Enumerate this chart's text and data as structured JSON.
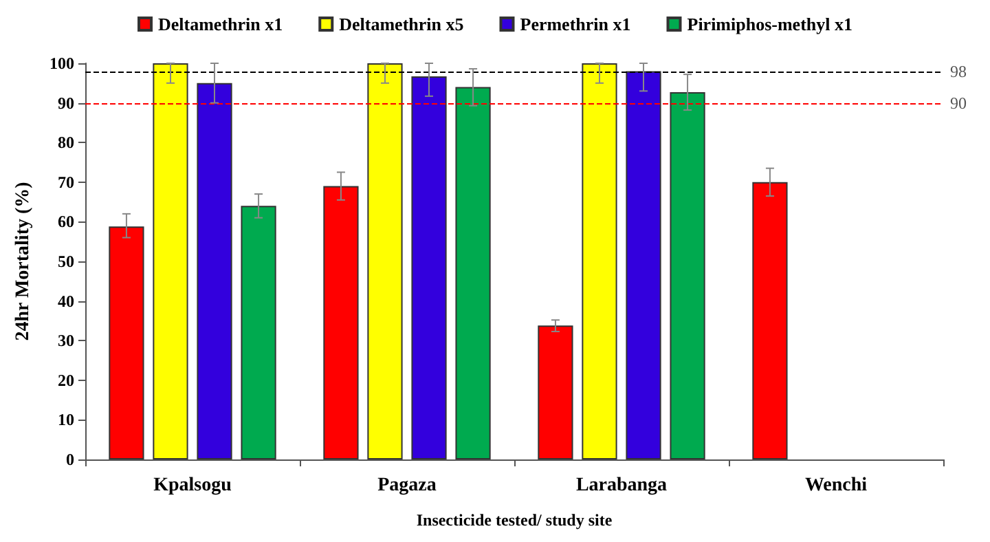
{
  "chart_data": {
    "type": "bar",
    "xlabel": "Insecticide tested/ study site",
    "ylabel": "24hr Mortality (%)",
    "categories": [
      "Kpalsogu",
      "Pagaza",
      "Larabanga",
      "Wenchi"
    ],
    "series": [
      {
        "name": "Deltamethrin x1",
        "color": "#ff0000",
        "values": [
          58.8,
          69,
          33.8,
          70
        ],
        "errors": [
          [
            56,
            62
          ],
          [
            65.5,
            72.5
          ],
          [
            32.3,
            35.2
          ],
          [
            66.5,
            73.5
          ]
        ]
      },
      {
        "name": "Deltamethrin x5",
        "color": "#ffff00",
        "values": [
          100,
          100,
          100,
          null
        ],
        "errors": [
          [
            95,
            100
          ],
          [
            95,
            100
          ],
          [
            95,
            100
          ],
          null
        ]
      },
      {
        "name": "Permethrin x1",
        "color": "#3300dd",
        "values": [
          95,
          96.7,
          98,
          null
        ],
        "errors": [
          [
            90,
            100
          ],
          [
            91.7,
            100
          ],
          [
            93,
            100
          ],
          null
        ]
      },
      {
        "name": "Pirimiphos-methyl x1",
        "color": "#00aa4f",
        "values": [
          64,
          94,
          92.7,
          null
        ],
        "errors": [
          [
            61,
            67
          ],
          [
            89.3,
            98.6
          ],
          [
            88.2,
            97.2
          ],
          null
        ]
      }
    ],
    "ylim": [
      0,
      100
    ],
    "yticks": [
      0,
      10,
      20,
      30,
      40,
      50,
      60,
      70,
      80,
      90,
      100
    ],
    "grid": false,
    "legend": "top",
    "ref_lines": [
      {
        "axis": "y",
        "value": 98,
        "label": "98",
        "color": "#000000",
        "line_style": "dashed"
      },
      {
        "axis": "y",
        "value": 90,
        "label": "90",
        "color": "#ff0000",
        "line_style": "dashed"
      }
    ]
  }
}
